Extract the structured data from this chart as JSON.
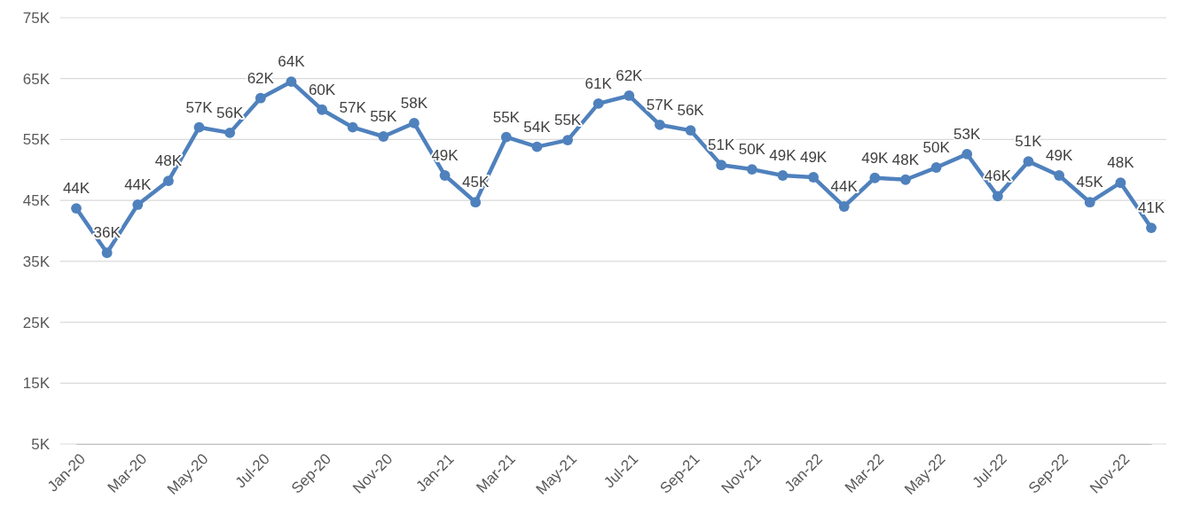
{
  "chart_data": {
    "type": "line",
    "categories": [
      "Jan-20",
      null,
      "Mar-20",
      null,
      "May-20",
      null,
      "Jul-20",
      null,
      "Sep-20",
      null,
      "Nov-20",
      null,
      "Jan-21",
      null,
      "Mar-21",
      null,
      "May-21",
      null,
      "Jul-21",
      null,
      "Sep-21",
      null,
      "Nov-21",
      null,
      "Jan-22",
      null,
      "Mar-22",
      null,
      "May-22",
      null,
      "Jul-22",
      null,
      "Sep-22",
      null,
      "Nov-22",
      null
    ],
    "series": [
      {
        "color": "#4f81bd",
        "values": [
          43.7,
          36.4,
          44.3,
          48.2,
          57.0,
          56.1,
          61.8,
          64.5,
          59.9,
          57.0,
          55.5,
          57.7,
          49.1,
          44.7,
          55.4,
          53.8,
          54.9,
          60.9,
          62.2,
          57.4,
          56.5,
          50.8,
          50.1,
          49.1,
          48.8,
          44.0,
          48.7,
          48.4,
          50.4,
          52.6,
          45.7,
          51.4,
          49.1,
          44.7,
          47.9,
          40.5
        ],
        "value_labels": [
          "44K",
          "36K",
          "44K",
          "48K",
          "57K",
          "56K",
          "62K",
          "64K",
          "60K",
          "57K",
          "55K",
          "58K",
          "49K",
          "45K",
          "55K",
          "54K",
          "55K",
          "61K",
          "62K",
          "57K",
          "56K",
          "51K",
          "50K",
          "49K",
          "49K",
          "44K",
          "49K",
          "48K",
          "50K",
          "53K",
          "46K",
          "51K",
          "49K",
          "45K",
          "48K",
          "41K"
        ]
      }
    ],
    "ylim": [
      5,
      75
    ],
    "yticks": [
      {
        "value": 5,
        "label": "5K"
      },
      {
        "value": 15,
        "label": "15K"
      },
      {
        "value": 25,
        "label": "25K"
      },
      {
        "value": 35,
        "label": "35K"
      },
      {
        "value": 45,
        "label": "45K"
      },
      {
        "value": 55,
        "label": "55K"
      },
      {
        "value": 65,
        "label": "65K"
      },
      {
        "value": 75,
        "label": "75K"
      }
    ],
    "grid": "y",
    "marker": "circle",
    "line_style": "solid"
  }
}
